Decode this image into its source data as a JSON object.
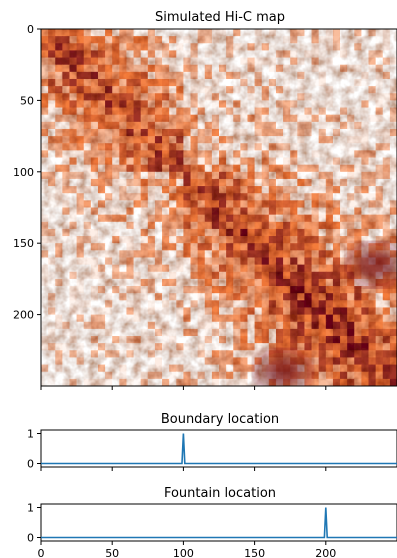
{
  "chart_data": [
    {
      "type": "heatmap",
      "title": "Simulated Hi-C map",
      "xlabel": "",
      "ylabel": "",
      "colormap": "YlOrRd-like (white → orange → dark red)",
      "colors": {
        "low": "#ffffff",
        "mid": "#f47b3a",
        "high": "#6e0719"
      },
      "xlim": [
        0,
        250
      ],
      "ylim": [
        250,
        0
      ],
      "yticks": [
        0,
        50,
        100,
        150,
        200
      ],
      "ytick_labels": [
        "0",
        "50",
        "100",
        "150",
        "200"
      ],
      "xticks": [
        0,
        50,
        100,
        150,
        200
      ],
      "xtick_labels_visible": false,
      "features": {
        "diagonal_band": "high contact along i=j",
        "boundaries": [
          100
        ],
        "fountain_centers": [
          200
        ],
        "dark_regions": [
          {
            "x": 235,
            "y": 165,
            "description": "dark red patch lower-right edge"
          },
          {
            "x": 170,
            "y": 240,
            "description": "dark red patch at bottom"
          }
        ]
      }
    },
    {
      "type": "line",
      "title": "Boundary location",
      "xlim": [
        0,
        250
      ],
      "ylim": [
        0,
        1
      ],
      "yticks": [
        0,
        1
      ],
      "ytick_labels": [
        "0",
        "1"
      ],
      "xtick_labels_visible": false,
      "series": [
        {
          "x": [
            0,
            99,
            100,
            101,
            250
          ],
          "y": [
            0,
            0,
            1,
            0,
            0
          ],
          "color": "#1f77b4"
        }
      ]
    },
    {
      "type": "line",
      "title": "Fountain location",
      "xlim": [
        0,
        250
      ],
      "ylim": [
        0,
        1
      ],
      "yticks": [
        0,
        1
      ],
      "ytick_labels": [
        "0",
        "1"
      ],
      "xticks": [
        0,
        50,
        100,
        150,
        200
      ],
      "xtick_labels": [
        "0",
        "50",
        "100",
        "150",
        "200"
      ],
      "series": [
        {
          "x": [
            0,
            199,
            200,
            201,
            250
          ],
          "y": [
            0,
            0,
            1,
            0,
            0
          ],
          "color": "#1f77b4"
        }
      ]
    }
  ]
}
